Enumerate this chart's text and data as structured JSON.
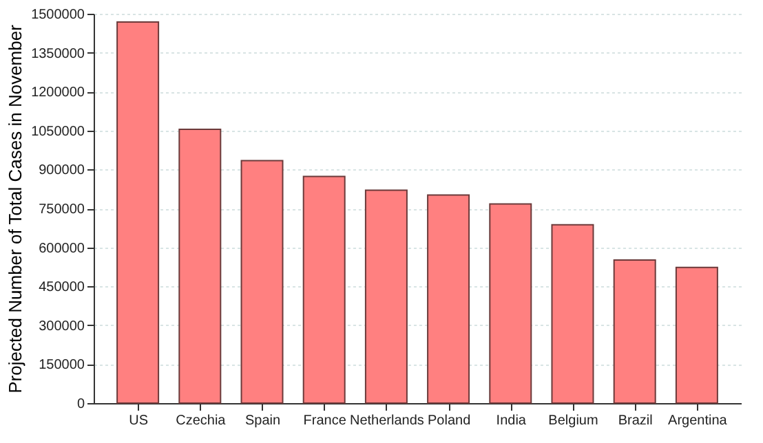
{
  "chart_data": {
    "type": "bar",
    "ylabel": "Projected Number of Total Cases in November",
    "categories": [
      "US",
      "Czechia",
      "Spain",
      "France",
      "Netherlands",
      "Poland",
      "India",
      "Belgium",
      "Brazil",
      "Argentina"
    ],
    "values": [
      1468000,
      1055000,
      934000,
      873000,
      820000,
      802000,
      767000,
      687000,
      551000,
      523000
    ],
    "color": "#ff8080",
    "ylim": [
      0,
      1500000
    ],
    "yticks": [
      0,
      150000,
      300000,
      450000,
      600000,
      750000,
      900000,
      1050000,
      1200000,
      1350000,
      1500000
    ],
    "grid": "y"
  }
}
